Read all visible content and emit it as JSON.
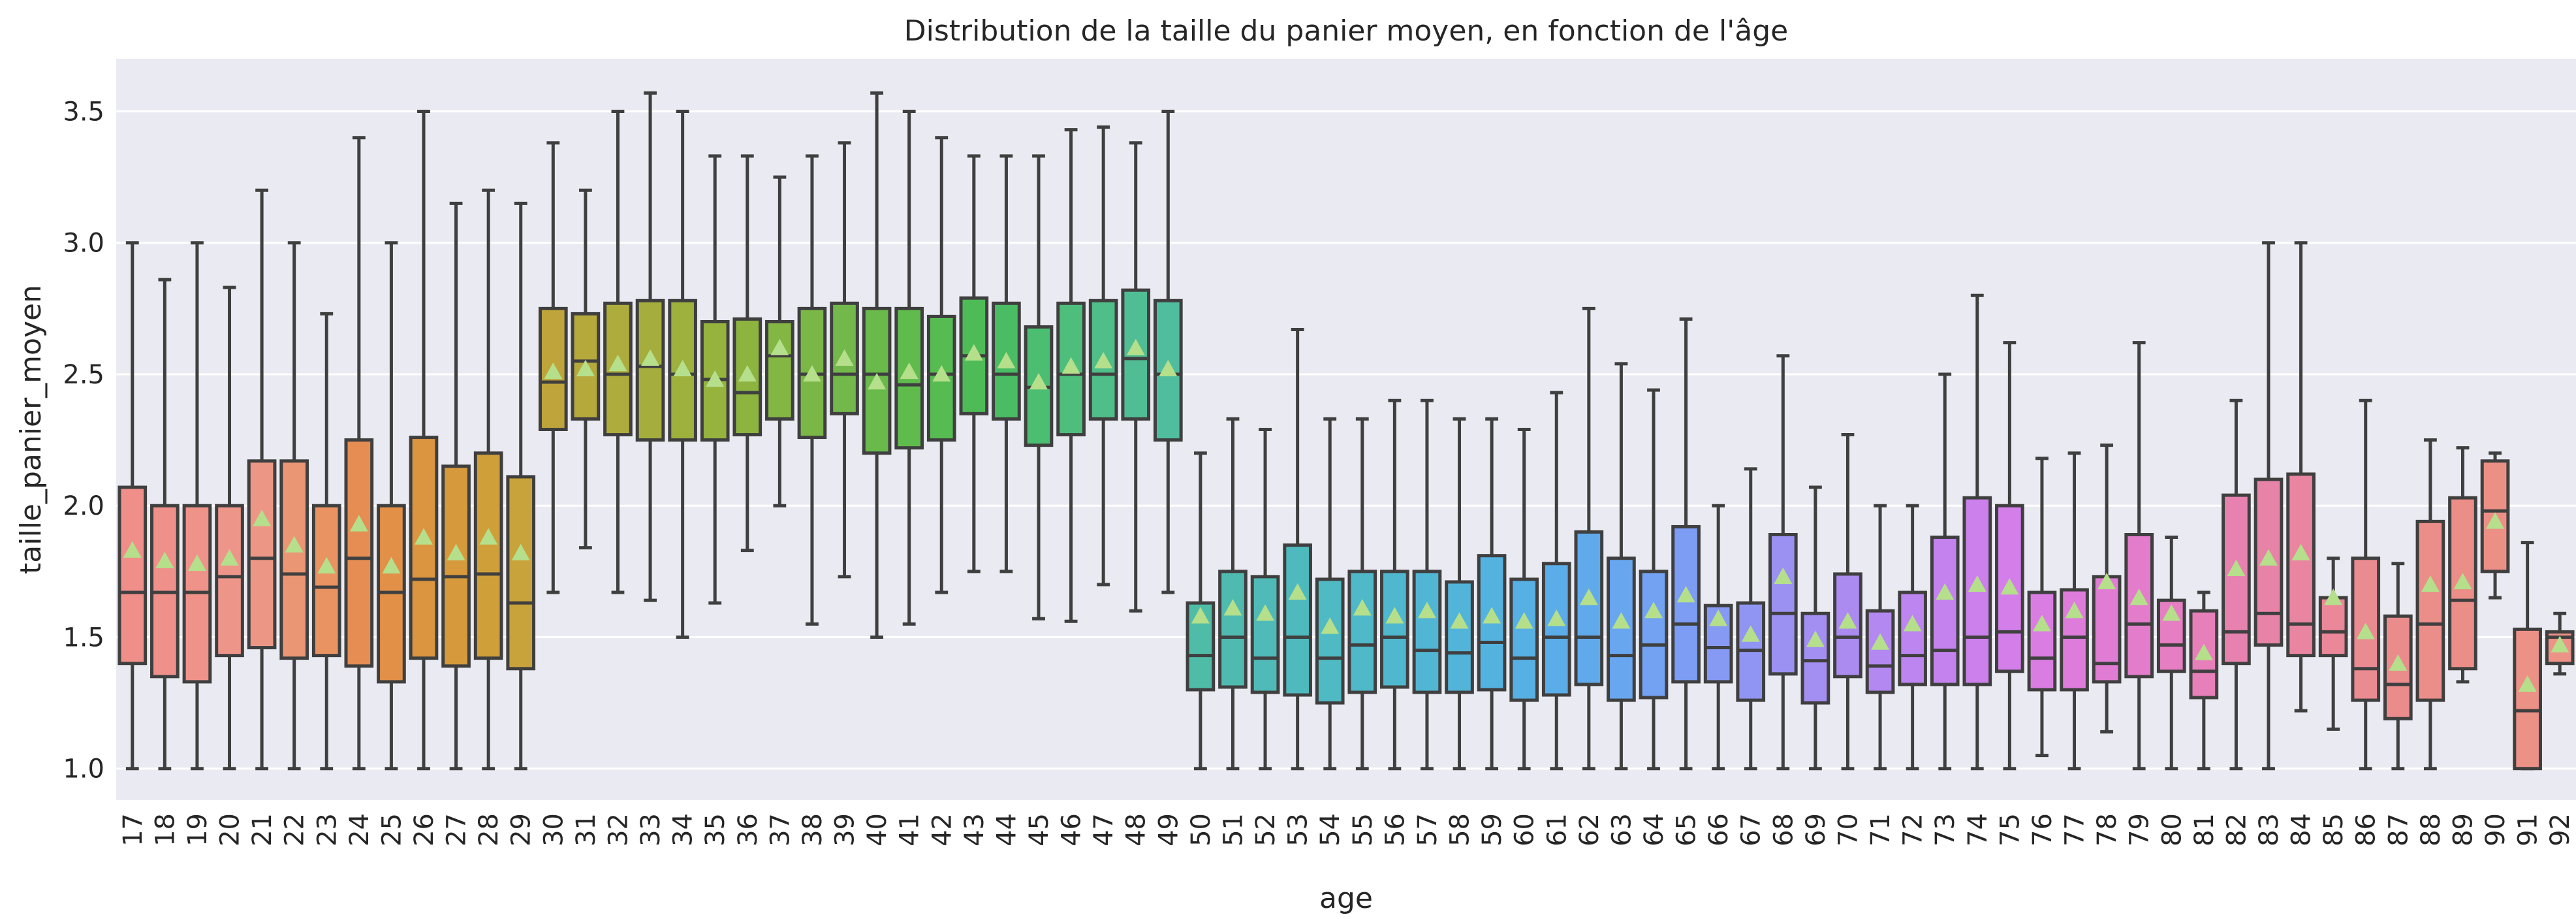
{
  "chart_data": {
    "type": "box",
    "title": "Distribution de la taille du panier moyen, en fonction de l'âge",
    "xlabel": "age",
    "ylabel": "taille_panier_moyen",
    "ylim": [
      0.88,
      3.7
    ],
    "yticks": [
      "1.0",
      "1.5",
      "2.0",
      "2.5",
      "3.0",
      "3.5"
    ],
    "grid": true,
    "background": "#eaeaf2",
    "box_edge_color": "#3f3f3f",
    "mean_marker_color": "#b5df8b",
    "categories": [
      "17",
      "18",
      "19",
      "20",
      "21",
      "22",
      "23",
      "24",
      "25",
      "26",
      "27",
      "28",
      "29",
      "30",
      "31",
      "32",
      "33",
      "34",
      "35",
      "36",
      "37",
      "38",
      "39",
      "40",
      "41",
      "42",
      "43",
      "44",
      "45",
      "46",
      "47",
      "48",
      "49",
      "50",
      "51",
      "52",
      "53",
      "54",
      "55",
      "56",
      "57",
      "58",
      "59",
      "60",
      "61",
      "62",
      "63",
      "64",
      "65",
      "66",
      "67",
      "68",
      "69",
      "70",
      "71",
      "72",
      "73",
      "74",
      "75",
      "76",
      "77",
      "78",
      "79",
      "80",
      "81",
      "82",
      "83",
      "84",
      "85",
      "86",
      "87",
      "88",
      "89",
      "90",
      "91",
      "92"
    ],
    "colors": [
      "#f08e8a",
      "#f0908a",
      "#ef938a",
      "#ee958a",
      "#ec9786",
      "#ea9675",
      "#e99262",
      "#e58d52",
      "#e29047",
      "#db9540",
      "#d69a3c",
      "#cf9f3a",
      "#c8a23a",
      "#bea43a",
      "#b6a93c",
      "#aeac3c",
      "#a5ae3c",
      "#9db13c",
      "#96b33e",
      "#8cb43f",
      "#83b642",
      "#7ab746",
      "#73b84b",
      "#69ba4a",
      "#5fbb4b",
      "#56bb50",
      "#4dbc57",
      "#4abd64",
      "#4cbe71",
      "#4ebe7d",
      "#4fbe89",
      "#50bd94",
      "#50bd9e",
      "#4fbca7",
      "#4fbbb0",
      "#4fbab7",
      "#4fbabd",
      "#4fbac3",
      "#4fb9c9",
      "#4fb8ce",
      "#50b6d3",
      "#52b4d8",
      "#54b2de",
      "#56b0e3",
      "#5aade8",
      "#60aaec",
      "#68a6ef",
      "#72a2f1",
      "#7c9df3",
      "#8699f3",
      "#9095f3",
      "#9a91f2",
      "#a38ef2",
      "#ac8bf1",
      "#b488f1",
      "#bc85f0",
      "#c482ef",
      "#cc80ec",
      "#d37ee9",
      "#d97de3",
      "#de7cdc",
      "#e17cd4",
      "#e37dcb",
      "#e57ec3",
      "#e77fba",
      "#e781b0",
      "#e883a8",
      "#e985a0",
      "#ea8798",
      "#ea8a91",
      "#ea8c8c",
      "#eb8d89",
      "#eb8e87",
      "#ec9086",
      "#ec9186",
      "#ec9287"
    ],
    "series": [
      {
        "name": "17",
        "min": 1.0,
        "q1": 1.4,
        "median": 1.67,
        "q3": 2.07,
        "max": 3.0,
        "mean": 1.83
      },
      {
        "name": "18",
        "min": 1.0,
        "q1": 1.35,
        "median": 1.67,
        "q3": 2.0,
        "max": 2.86,
        "mean": 1.79
      },
      {
        "name": "19",
        "min": 1.0,
        "q1": 1.33,
        "median": 1.67,
        "q3": 2.0,
        "max": 3.0,
        "mean": 1.78
      },
      {
        "name": "20",
        "min": 1.0,
        "q1": 1.43,
        "median": 1.73,
        "q3": 2.0,
        "max": 2.83,
        "mean": 1.8
      },
      {
        "name": "21",
        "min": 1.0,
        "q1": 1.46,
        "median": 1.8,
        "q3": 2.17,
        "max": 3.2,
        "mean": 1.95
      },
      {
        "name": "22",
        "min": 1.0,
        "q1": 1.42,
        "median": 1.74,
        "q3": 2.17,
        "max": 3.0,
        "mean": 1.85
      },
      {
        "name": "23",
        "min": 1.0,
        "q1": 1.43,
        "median": 1.69,
        "q3": 2.0,
        "max": 2.73,
        "mean": 1.77
      },
      {
        "name": "24",
        "min": 1.0,
        "q1": 1.39,
        "median": 1.8,
        "q3": 2.25,
        "max": 3.4,
        "mean": 1.93
      },
      {
        "name": "25",
        "min": 1.0,
        "q1": 1.33,
        "median": 1.67,
        "q3": 2.0,
        "max": 3.0,
        "mean": 1.77
      },
      {
        "name": "26",
        "min": 1.0,
        "q1": 1.42,
        "median": 1.72,
        "q3": 2.26,
        "max": 3.5,
        "mean": 1.88
      },
      {
        "name": "27",
        "min": 1.0,
        "q1": 1.39,
        "median": 1.73,
        "q3": 2.15,
        "max": 3.15,
        "mean": 1.82
      },
      {
        "name": "28",
        "min": 1.0,
        "q1": 1.42,
        "median": 1.74,
        "q3": 2.2,
        "max": 3.2,
        "mean": 1.88
      },
      {
        "name": "29",
        "min": 1.0,
        "q1": 1.38,
        "median": 1.63,
        "q3": 2.11,
        "max": 3.15,
        "mean": 1.82
      },
      {
        "name": "30",
        "min": 1.67,
        "q1": 2.29,
        "median": 2.47,
        "q3": 2.75,
        "max": 3.38,
        "mean": 2.51
      },
      {
        "name": "31",
        "min": 1.84,
        "q1": 2.33,
        "median": 2.55,
        "q3": 2.73,
        "max": 3.2,
        "mean": 2.52
      },
      {
        "name": "32",
        "min": 1.67,
        "q1": 2.27,
        "median": 2.5,
        "q3": 2.77,
        "max": 3.5,
        "mean": 2.54
      },
      {
        "name": "33",
        "min": 1.64,
        "q1": 2.25,
        "median": 2.53,
        "q3": 2.78,
        "max": 3.57,
        "mean": 2.56
      },
      {
        "name": "34",
        "min": 1.5,
        "q1": 2.25,
        "median": 2.5,
        "q3": 2.78,
        "max": 3.5,
        "mean": 2.52
      },
      {
        "name": "35",
        "min": 1.63,
        "q1": 2.25,
        "median": 2.48,
        "q3": 2.7,
        "max": 3.33,
        "mean": 2.48
      },
      {
        "name": "36",
        "min": 1.83,
        "q1": 2.27,
        "median": 2.43,
        "q3": 2.71,
        "max": 3.33,
        "mean": 2.5
      },
      {
        "name": "37",
        "min": 2.0,
        "q1": 2.33,
        "median": 2.57,
        "q3": 2.7,
        "max": 3.25,
        "mean": 2.6
      },
      {
        "name": "38",
        "min": 1.55,
        "q1": 2.26,
        "median": 2.5,
        "q3": 2.75,
        "max": 3.33,
        "mean": 2.5
      },
      {
        "name": "39",
        "min": 1.73,
        "q1": 2.35,
        "median": 2.5,
        "q3": 2.77,
        "max": 3.38,
        "mean": 2.56
      },
      {
        "name": "40",
        "min": 1.5,
        "q1": 2.2,
        "median": 2.5,
        "q3": 2.75,
        "max": 3.57,
        "mean": 2.47
      },
      {
        "name": "41",
        "min": 1.55,
        "q1": 2.22,
        "median": 2.46,
        "q3": 2.75,
        "max": 3.5,
        "mean": 2.51
      },
      {
        "name": "42",
        "min": 1.67,
        "q1": 2.25,
        "median": 2.5,
        "q3": 2.72,
        "max": 3.4,
        "mean": 2.5
      },
      {
        "name": "43",
        "min": 1.75,
        "q1": 2.35,
        "median": 2.57,
        "q3": 2.79,
        "max": 3.33,
        "mean": 2.58
      },
      {
        "name": "44",
        "min": 1.75,
        "q1": 2.33,
        "median": 2.5,
        "q3": 2.77,
        "max": 3.33,
        "mean": 2.55
      },
      {
        "name": "45",
        "min": 1.57,
        "q1": 2.23,
        "median": 2.45,
        "q3": 2.68,
        "max": 3.33,
        "mean": 2.47
      },
      {
        "name": "46",
        "min": 1.56,
        "q1": 2.27,
        "median": 2.5,
        "q3": 2.77,
        "max": 3.43,
        "mean": 2.53
      },
      {
        "name": "47",
        "min": 1.7,
        "q1": 2.33,
        "median": 2.5,
        "q3": 2.78,
        "max": 3.44,
        "mean": 2.55
      },
      {
        "name": "48",
        "min": 1.6,
        "q1": 2.33,
        "median": 2.56,
        "q3": 2.82,
        "max": 3.38,
        "mean": 2.6
      },
      {
        "name": "49",
        "min": 1.67,
        "q1": 2.25,
        "median": 2.5,
        "q3": 2.78,
        "max": 3.5,
        "mean": 2.52
      },
      {
        "name": "50",
        "min": 1.0,
        "q1": 1.3,
        "median": 1.43,
        "q3": 1.63,
        "max": 2.2,
        "mean": 1.58
      },
      {
        "name": "51",
        "min": 1.0,
        "q1": 1.31,
        "median": 1.5,
        "q3": 1.75,
        "max": 2.33,
        "mean": 1.61
      },
      {
        "name": "52",
        "min": 1.0,
        "q1": 1.29,
        "median": 1.42,
        "q3": 1.73,
        "max": 2.29,
        "mean": 1.59
      },
      {
        "name": "53",
        "min": 1.0,
        "q1": 1.28,
        "median": 1.5,
        "q3": 1.85,
        "max": 2.67,
        "mean": 1.67
      },
      {
        "name": "54",
        "min": 1.0,
        "q1": 1.25,
        "median": 1.42,
        "q3": 1.72,
        "max": 2.33,
        "mean": 1.54
      },
      {
        "name": "55",
        "min": 1.0,
        "q1": 1.29,
        "median": 1.47,
        "q3": 1.75,
        "max": 2.33,
        "mean": 1.61
      },
      {
        "name": "56",
        "min": 1.0,
        "q1": 1.31,
        "median": 1.5,
        "q3": 1.75,
        "max": 2.4,
        "mean": 1.58
      },
      {
        "name": "57",
        "min": 1.0,
        "q1": 1.29,
        "median": 1.45,
        "q3": 1.75,
        "max": 2.4,
        "mean": 1.6
      },
      {
        "name": "58",
        "min": 1.0,
        "q1": 1.29,
        "median": 1.44,
        "q3": 1.71,
        "max": 2.33,
        "mean": 1.56
      },
      {
        "name": "59",
        "min": 1.0,
        "q1": 1.3,
        "median": 1.48,
        "q3": 1.81,
        "max": 2.33,
        "mean": 1.58
      },
      {
        "name": "60",
        "min": 1.0,
        "q1": 1.26,
        "median": 1.42,
        "q3": 1.72,
        "max": 2.29,
        "mean": 1.56
      },
      {
        "name": "61",
        "min": 1.0,
        "q1": 1.28,
        "median": 1.5,
        "q3": 1.78,
        "max": 2.43,
        "mean": 1.57
      },
      {
        "name": "62",
        "min": 1.0,
        "q1": 1.32,
        "median": 1.5,
        "q3": 1.9,
        "max": 2.75,
        "mean": 1.65
      },
      {
        "name": "63",
        "min": 1.0,
        "q1": 1.26,
        "median": 1.43,
        "q3": 1.8,
        "max": 2.54,
        "mean": 1.56
      },
      {
        "name": "64",
        "min": 1.0,
        "q1": 1.27,
        "median": 1.47,
        "q3": 1.75,
        "max": 2.44,
        "mean": 1.6
      },
      {
        "name": "65",
        "min": 1.0,
        "q1": 1.33,
        "median": 1.55,
        "q3": 1.92,
        "max": 2.71,
        "mean": 1.66
      },
      {
        "name": "66",
        "min": 1.0,
        "q1": 1.33,
        "median": 1.46,
        "q3": 1.62,
        "max": 2.0,
        "mean": 1.57
      },
      {
        "name": "67",
        "min": 1.0,
        "q1": 1.26,
        "median": 1.45,
        "q3": 1.63,
        "max": 2.14,
        "mean": 1.51
      },
      {
        "name": "68",
        "min": 1.0,
        "q1": 1.36,
        "median": 1.59,
        "q3": 1.89,
        "max": 2.57,
        "mean": 1.73
      },
      {
        "name": "69",
        "min": 1.0,
        "q1": 1.25,
        "median": 1.41,
        "q3": 1.59,
        "max": 2.07,
        "mean": 1.49
      },
      {
        "name": "70",
        "min": 1.0,
        "q1": 1.35,
        "median": 1.5,
        "q3": 1.74,
        "max": 2.27,
        "mean": 1.56
      },
      {
        "name": "71",
        "min": 1.0,
        "q1": 1.29,
        "median": 1.39,
        "q3": 1.6,
        "max": 2.0,
        "mean": 1.48
      },
      {
        "name": "72",
        "min": 1.0,
        "q1": 1.32,
        "median": 1.43,
        "q3": 1.67,
        "max": 2.0,
        "mean": 1.55
      },
      {
        "name": "73",
        "min": 1.0,
        "q1": 1.32,
        "median": 1.45,
        "q3": 1.88,
        "max": 2.5,
        "mean": 1.67
      },
      {
        "name": "74",
        "min": 1.0,
        "q1": 1.32,
        "median": 1.5,
        "q3": 2.03,
        "max": 2.8,
        "mean": 1.7
      },
      {
        "name": "75",
        "min": 1.0,
        "q1": 1.37,
        "median": 1.52,
        "q3": 2.0,
        "max": 2.62,
        "mean": 1.69
      },
      {
        "name": "76",
        "min": 1.05,
        "q1": 1.3,
        "median": 1.42,
        "q3": 1.67,
        "max": 2.18,
        "mean": 1.55
      },
      {
        "name": "77",
        "min": 1.0,
        "q1": 1.3,
        "median": 1.5,
        "q3": 1.68,
        "max": 2.2,
        "mean": 1.6
      },
      {
        "name": "78",
        "min": 1.14,
        "q1": 1.33,
        "median": 1.4,
        "q3": 1.73,
        "max": 2.23,
        "mean": 1.71
      },
      {
        "name": "79",
        "min": 1.0,
        "q1": 1.35,
        "median": 1.55,
        "q3": 1.89,
        "max": 2.62,
        "mean": 1.65
      },
      {
        "name": "80",
        "min": 1.0,
        "q1": 1.37,
        "median": 1.47,
        "q3": 1.64,
        "max": 1.88,
        "mean": 1.59
      },
      {
        "name": "81",
        "min": 1.0,
        "q1": 1.27,
        "median": 1.37,
        "q3": 1.6,
        "max": 1.67,
        "mean": 1.44
      },
      {
        "name": "82",
        "min": 1.0,
        "q1": 1.4,
        "median": 1.52,
        "q3": 2.04,
        "max": 2.4,
        "mean": 1.76
      },
      {
        "name": "83",
        "min": 1.0,
        "q1": 1.47,
        "median": 1.59,
        "q3": 2.1,
        "max": 3.0,
        "mean": 1.8
      },
      {
        "name": "84",
        "min": 1.22,
        "q1": 1.43,
        "median": 1.55,
        "q3": 2.12,
        "max": 3.0,
        "mean": 1.82
      },
      {
        "name": "85",
        "min": 1.15,
        "q1": 1.43,
        "median": 1.52,
        "q3": 1.65,
        "max": 1.8,
        "mean": 1.65
      },
      {
        "name": "86",
        "min": 1.0,
        "q1": 1.26,
        "median": 1.38,
        "q3": 1.8,
        "max": 2.4,
        "mean": 1.52
      },
      {
        "name": "87",
        "min": 1.0,
        "q1": 1.19,
        "median": 1.32,
        "q3": 1.58,
        "max": 1.78,
        "mean": 1.4
      },
      {
        "name": "88",
        "min": 1.0,
        "q1": 1.26,
        "median": 1.55,
        "q3": 1.94,
        "max": 2.25,
        "mean": 1.7
      },
      {
        "name": "89",
        "min": 1.33,
        "q1": 1.38,
        "median": 1.64,
        "q3": 2.03,
        "max": 2.22,
        "mean": 1.71
      },
      {
        "name": "90",
        "min": 1.65,
        "q1": 1.75,
        "median": 1.98,
        "q3": 2.17,
        "max": 2.2,
        "mean": 1.94
      },
      {
        "name": "91",
        "min": 1.0,
        "q1": 1.0,
        "median": 1.22,
        "q3": 1.53,
        "max": 1.86,
        "mean": 1.32
      },
      {
        "name": "92",
        "min": 1.36,
        "q1": 1.4,
        "median": 1.5,
        "q3": 1.52,
        "max": 1.59,
        "mean": 1.47
      }
    ]
  }
}
